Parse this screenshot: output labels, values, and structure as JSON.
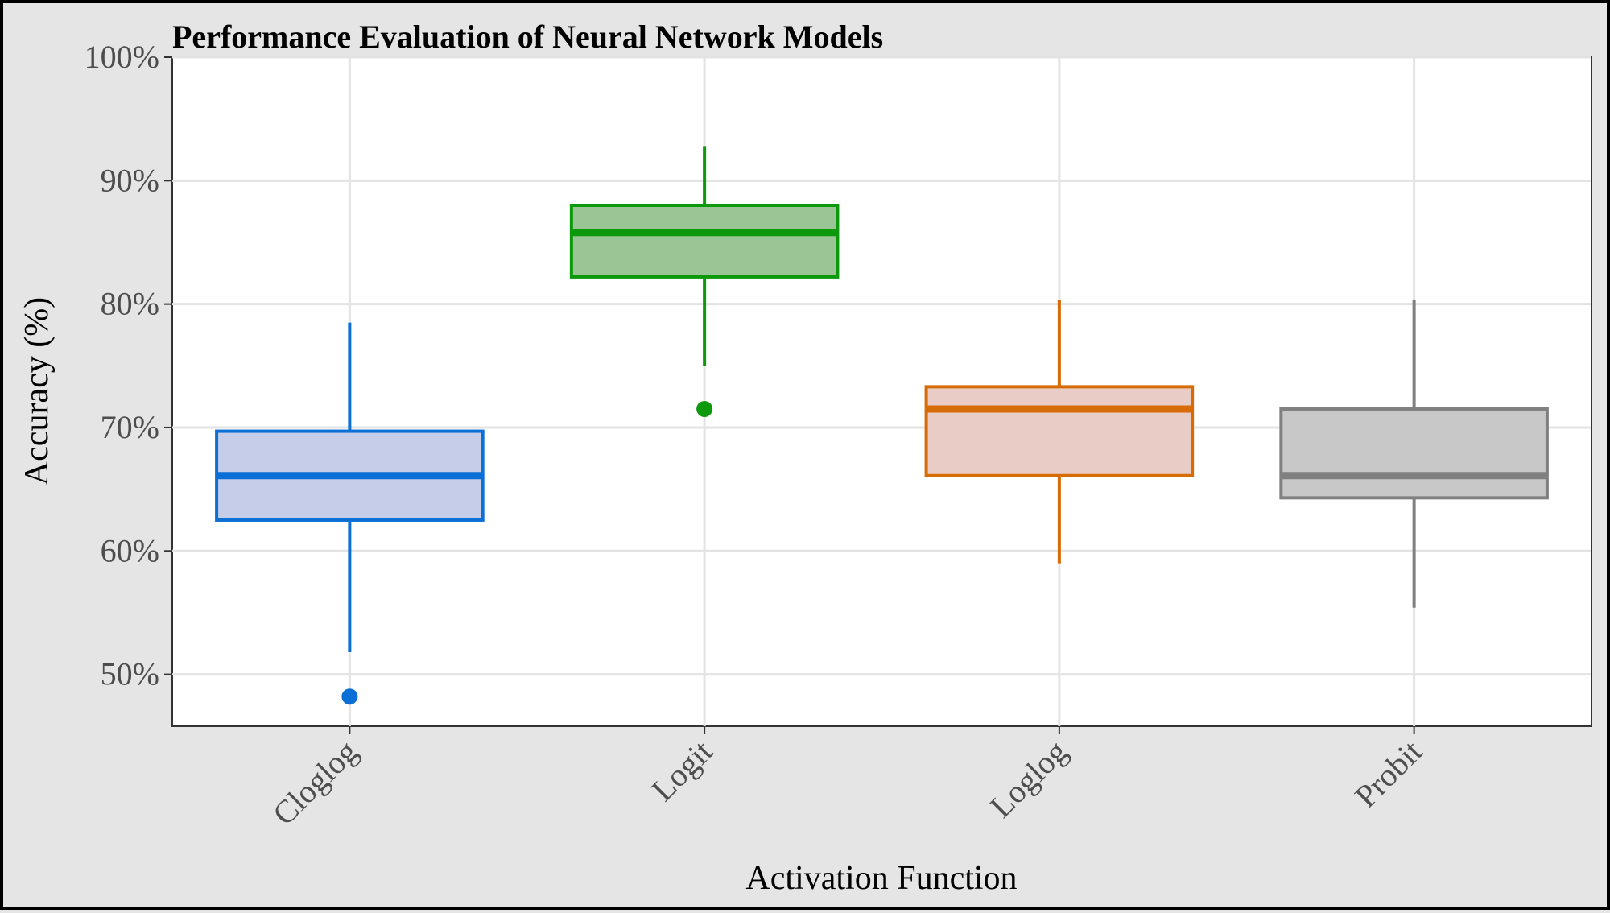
{
  "chart_data": {
    "type": "box",
    "title": "Performance Evaluation of Neural Network Models",
    "xlabel": "Activation Function",
    "ylabel": "Accuracy (%)",
    "ylim": [
      45.8,
      100
    ],
    "yticks": [
      50,
      60,
      70,
      80,
      90,
      100
    ],
    "ytick_labels": [
      "50%",
      "60%",
      "70%",
      "80%",
      "90%",
      "100%"
    ],
    "grid": true,
    "categories": [
      "Cloglog",
      "Logit",
      "Loglog",
      "Probit"
    ],
    "boxes": [
      {
        "category": "Cloglog",
        "whisker_low": 51.8,
        "q1": 62.5,
        "median": 66.1,
        "q3": 69.7,
        "whisker_high": 78.5,
        "outliers": [
          48.2
        ],
        "color": "#0b6fd6",
        "fill": "#c5cde9"
      },
      {
        "category": "Logit",
        "whisker_low": 75.0,
        "q1": 82.2,
        "median": 85.8,
        "q3": 88.0,
        "whisker_high": 92.8,
        "outliers": [
          71.5
        ],
        "color": "#0c990c",
        "fill": "#9bc595"
      },
      {
        "category": "Loglog",
        "whisker_low": 59.0,
        "q1": 66.1,
        "median": 71.5,
        "q3": 73.3,
        "whisker_high": 80.3,
        "outliers": [],
        "color": "#d76b06",
        "fill": "#e8ccc5"
      },
      {
        "category": "Probit",
        "whisker_low": 55.4,
        "q1": 64.3,
        "median": 66.1,
        "q3": 71.5,
        "whisker_high": 80.3,
        "outliers": [],
        "color": "#808080",
        "fill": "#c8c8c8"
      }
    ]
  }
}
